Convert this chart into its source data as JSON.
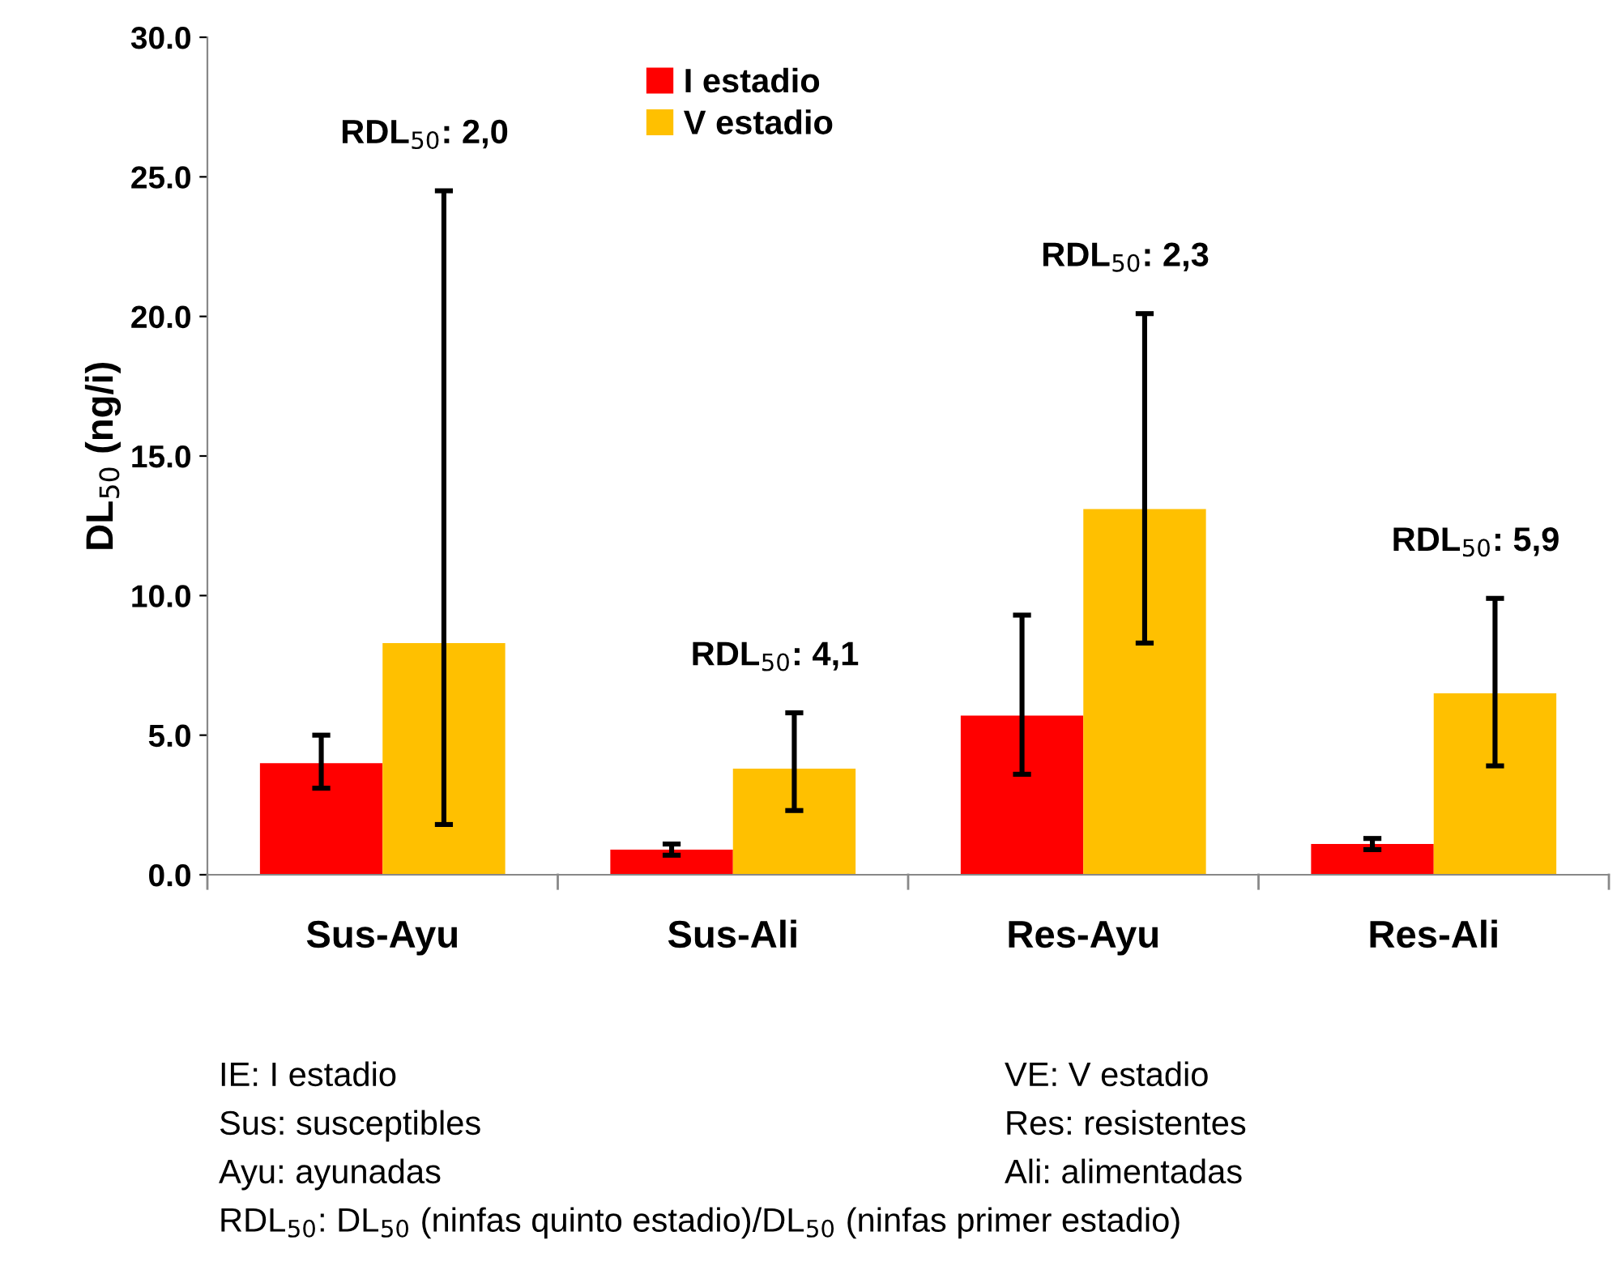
{
  "chart_data": {
    "type": "bar",
    "ylabel": "DL$_{50}$ (ng/i)",
    "categories": [
      "Sus-Ayu",
      "Sus-Ali",
      "Res-Ayu",
      "Res-Ali"
    ],
    "series": [
      {
        "name": "I estadio",
        "color": "#ff0000",
        "values": [
          4.0,
          0.9,
          5.7,
          1.1
        ],
        "errors": [
          [
            3.1,
            5.0
          ],
          [
            0.7,
            1.1
          ],
          [
            3.6,
            9.3
          ],
          [
            0.9,
            1.3
          ]
        ]
      },
      {
        "name": "V estadio",
        "color": "#ffc000",
        "values": [
          8.3,
          3.8,
          13.1,
          6.5
        ],
        "errors": [
          [
            1.8,
            24.5
          ],
          [
            2.3,
            5.8
          ],
          [
            8.3,
            20.1
          ],
          [
            3.9,
            9.9
          ]
        ]
      }
    ],
    "ylim": [
      0,
      30
    ],
    "yticks": [
      {
        "value": 0,
        "label": "0.0"
      },
      {
        "value": 5,
        "label": "5.0"
      },
      {
        "value": 10,
        "label": "10.0"
      },
      {
        "value": 15,
        "label": "15.0"
      },
      {
        "value": 20,
        "label": "20.0"
      },
      {
        "value": 25,
        "label": "25.0"
      },
      {
        "value": 30,
        "label": "30.0"
      }
    ],
    "grid": false,
    "legend": "top",
    "annotations": [
      "RDL$_{50}$: 2,0",
      "RDL$_{50}$: 4,1",
      "RDL$_{50}$: 2,3",
      "RDL$_{50}$: 5,9",
      "IE: I estadio",
      "VE: V estadio",
      "Sus: susceptibles",
      "Res: resistentes",
      "Ayu: ayunadas",
      "Ali: alimentadas",
      "RDL$_{50}$: DL$_{50}$ (ninfas quinto estadio)/DL$_{50}$ (ninfas primer estadio)"
    ]
  }
}
